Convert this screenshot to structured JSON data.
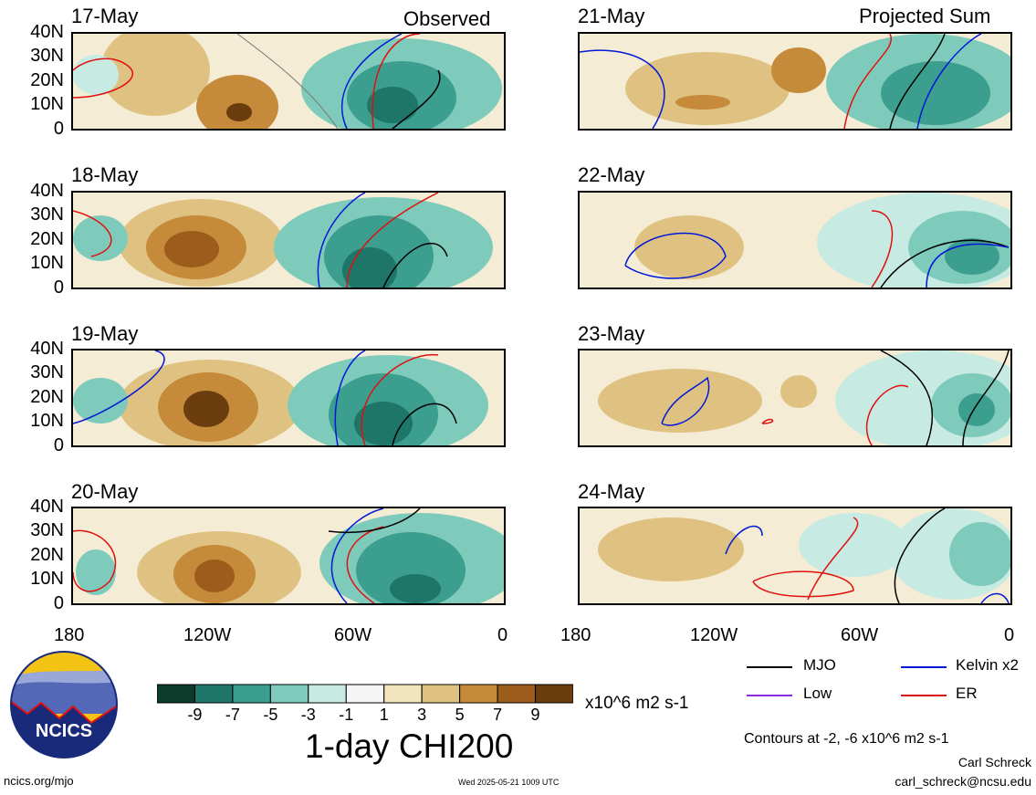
{
  "header": {
    "left_title": "Observed",
    "right_title": "Projected Sum"
  },
  "panels_left": [
    {
      "date": "17-May"
    },
    {
      "date": "18-May"
    },
    {
      "date": "19-May"
    },
    {
      "date": "20-May"
    }
  ],
  "panels_right": [
    {
      "date": "21-May"
    },
    {
      "date": "22-May"
    },
    {
      "date": "23-May"
    },
    {
      "date": "24-May"
    }
  ],
  "y_ticks": [
    "40N",
    "30N",
    "20N",
    "10N",
    "0"
  ],
  "x_ticks": [
    "180",
    "120W",
    "60W",
    "0"
  ],
  "colorbar": {
    "colors": [
      "#0d3b2c",
      "#1d7667",
      "#3c9e8e",
      "#7fcbbb",
      "#c7ebe3",
      "#f5f5f5",
      "#f2e4bd",
      "#dfc282",
      "#c58a3a",
      "#9c5c1b",
      "#6b3c0e"
    ],
    "labels": [
      "-9",
      "-7",
      "-5",
      "-3",
      "-1",
      "1",
      "3",
      "5",
      "7",
      "9"
    ],
    "units": "x10^6 m2 s-1",
    "title": "1-day CHI200"
  },
  "contour_legend": [
    {
      "label": "MJO",
      "color": "#000000"
    },
    {
      "label": "Kelvin x2",
      "color": "#0018d8"
    },
    {
      "label": "Low",
      "color": "#8a2be2"
    },
    {
      "label": "ER",
      "color": "#e01010"
    }
  ],
  "footer": {
    "logo_text": "NCICS",
    "contours_note": "Contours at -2, -6 x10^6 m2 s-1",
    "author": "Carl Schreck",
    "email": "carl_schreck@ncsu.edu",
    "site": "ncics.org/mjo",
    "timestamp": "Wed 2025-05-21 1009 UTC"
  }
}
